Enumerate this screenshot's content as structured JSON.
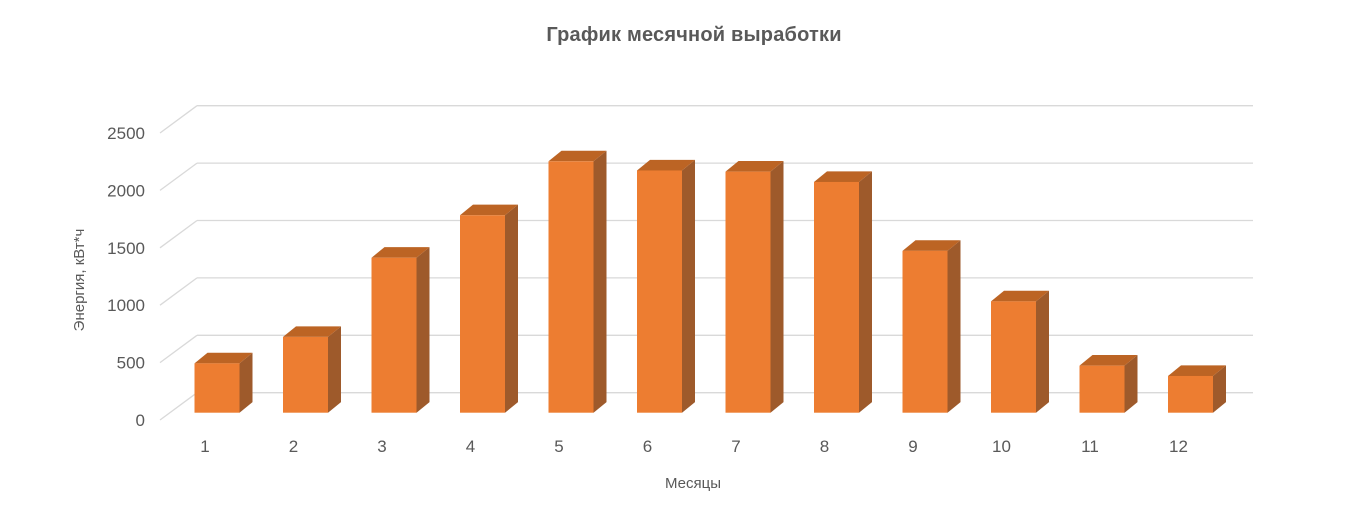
{
  "chart_data": {
    "type": "bar",
    "variant": "3d-column",
    "title": "График месячной выработки",
    "xlabel": "Месяцы",
    "ylabel": "Энергия, кВт*ч",
    "categories": [
      "1",
      "2",
      "3",
      "4",
      "5",
      "6",
      "7",
      "8",
      "9",
      "10",
      "11",
      "12"
    ],
    "values": [
      430,
      660,
      1350,
      1720,
      2190,
      2110,
      2100,
      2010,
      1410,
      970,
      410,
      320
    ],
    "yticks": [
      0,
      500,
      1000,
      1500,
      2000,
      2500
    ],
    "ylim": [
      0,
      2500
    ],
    "grid": true,
    "legend": false,
    "colors": {
      "bar_front": "#ED7D31",
      "bar_top": "#BC6424",
      "bar_side": "#9E5A2B",
      "gridline": "#D9D9D9",
      "axis_text": "#595959",
      "title_text": "#595959"
    }
  }
}
